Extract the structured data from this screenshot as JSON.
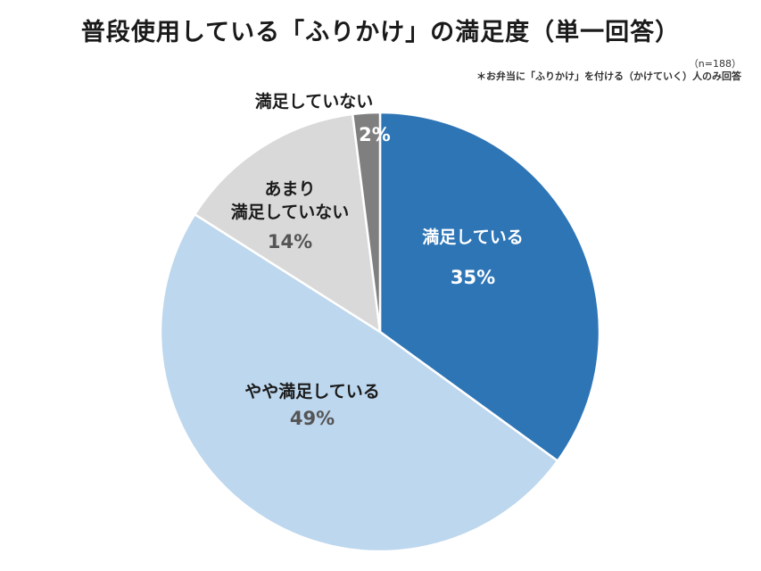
{
  "title": "普段使用している「ふりかけ」の満足度（単一回答）",
  "sample_size": "（n=188）",
  "note": "＊お弁当に「ふりかけ」を付ける（かけていく）人のみ回答",
  "chart_data": {
    "type": "pie",
    "title": "普段使用している「ふりかけ」の満足度（単一回答）",
    "start_angle_deg": 0,
    "direction": "clockwise",
    "slices": [
      {
        "label_lines": [
          "満足している"
        ],
        "value": 35,
        "value_label": "35%",
        "color": "#2e75b6",
        "label_color": "#ffffff"
      },
      {
        "label_lines": [
          "やや満足している"
        ],
        "value": 49,
        "value_label": "49%",
        "color": "#bdd7ee",
        "label_color": "#1a1a1a"
      },
      {
        "label_lines": [
          "あまり",
          "満足していない"
        ],
        "value": 14,
        "value_label": "14%",
        "color": "#d9d9d9",
        "label_color": "#1a1a1a"
      },
      {
        "label_lines": [
          "満足していない"
        ],
        "value": 2,
        "value_label": "2%",
        "color": "#7f7f7f",
        "label_color": "#1a1a1a"
      }
    ]
  }
}
